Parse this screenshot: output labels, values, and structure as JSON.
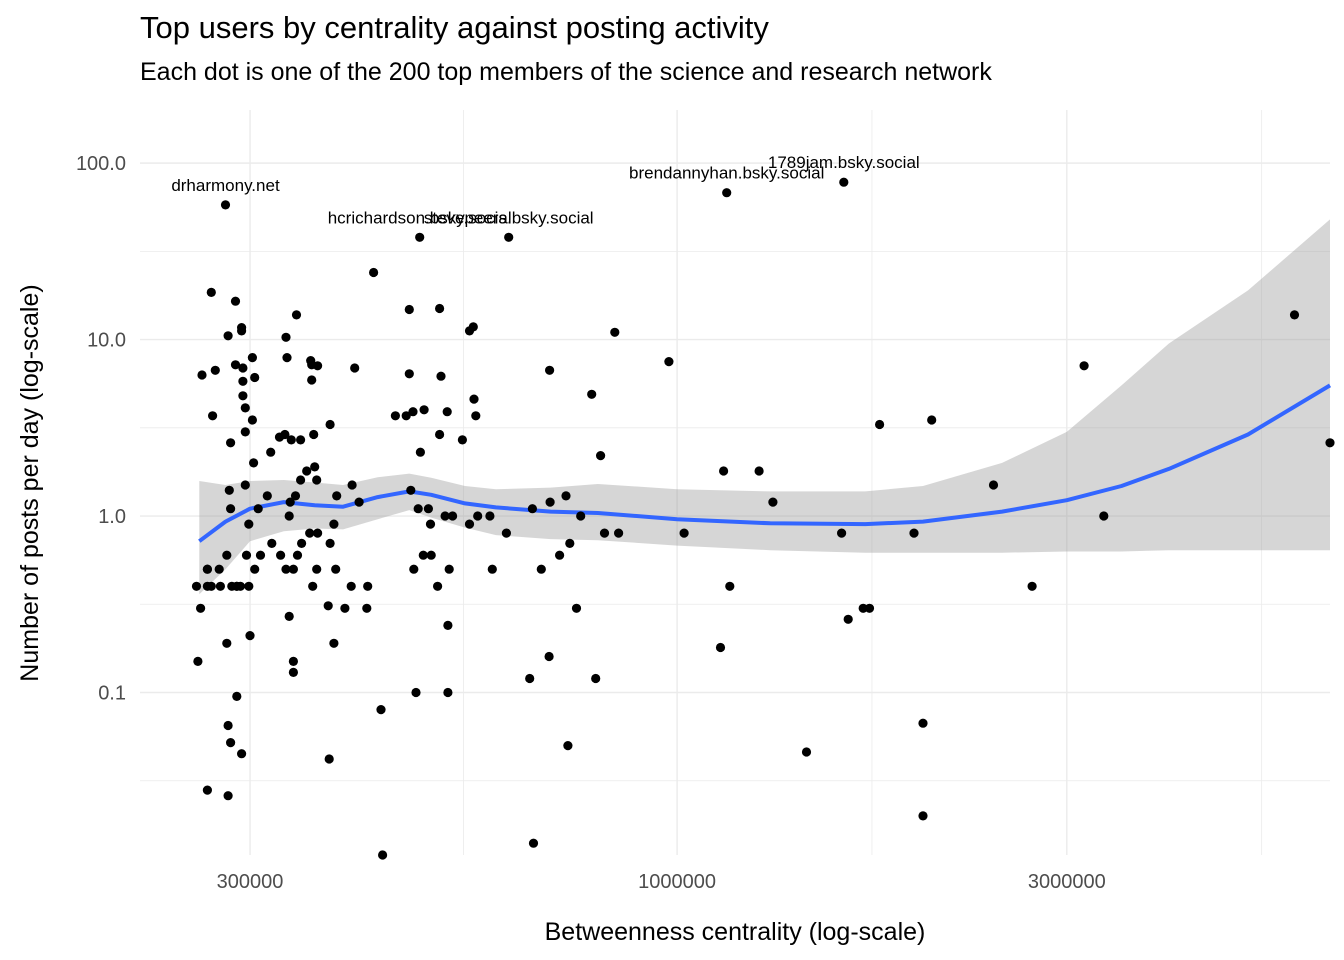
{
  "chart_data": {
    "type": "scatter",
    "title": "Top users by centrality against posting activity",
    "subtitle": "Each dot is one of the 200 top members of the science and research network",
    "xlabel": "Betweenness centrality (log-scale)",
    "ylabel": "Number of posts per day (log-scale)",
    "x_scale": "log10",
    "y_scale": "log10",
    "xlim": [
      220000,
      6300000
    ],
    "ylim": [
      0.012,
      200
    ],
    "x_ticks": [
      300000,
      1000000,
      3000000
    ],
    "x_tick_labels": [
      "300000",
      "1000000",
      "3000000"
    ],
    "y_ticks": [
      0.1,
      1.0,
      10.0,
      100.0
    ],
    "y_tick_labels": [
      "0.1",
      "1.0",
      "10.0",
      "100.0"
    ],
    "grid": true,
    "colors": {
      "points": "#000000",
      "smooth_line": "#3366FF",
      "confidence_band": "#999999",
      "grid": "#ebebeb"
    },
    "labels": [
      {
        "text": "drharmony.net",
        "x": 280000,
        "y": 58
      },
      {
        "text": "hcrichardson.bsky.social",
        "x": 484000,
        "y": 38
      },
      {
        "text": "stevepeers.bsky.social",
        "x": 622000,
        "y": 38
      },
      {
        "text": "brendannyhan.bsky.social",
        "x": 1150000,
        "y": 68
      },
      {
        "text": "1789jam.bsky.social",
        "x": 1600000,
        "y": 78
      }
    ],
    "points": [
      [
        280000,
        58
      ],
      [
        1150000,
        68
      ],
      [
        1600000,
        78
      ],
      [
        484000,
        38
      ],
      [
        622000,
        38
      ],
      [
        425000,
        24
      ],
      [
        269000,
        18.5
      ],
      [
        288000,
        16.5
      ],
      [
        342000,
        13.8
      ],
      [
        512000,
        15
      ],
      [
        470000,
        14.8
      ],
      [
        563000,
        11.8
      ],
      [
        557000,
        11.2
      ],
      [
        282000,
        10.5
      ],
      [
        293000,
        11.7
      ],
      [
        332000,
        10.3
      ],
      [
        293000,
        11.2
      ],
      [
        839000,
        11
      ],
      [
        262000,
        6.3
      ],
      [
        272000,
        6.7
      ],
      [
        288000,
        7.2
      ],
      [
        294000,
        6.9
      ],
      [
        302000,
        7.9
      ],
      [
        333000,
        7.9
      ],
      [
        356000,
        7.6
      ],
      [
        357000,
        7.2
      ],
      [
        363000,
        7.1
      ],
      [
        403000,
        6.9
      ],
      [
        470000,
        6.4
      ],
      [
        514000,
        6.2
      ],
      [
        698000,
        6.7
      ],
      [
        977000,
        7.5
      ],
      [
        3150000,
        7.1
      ],
      [
        5700000,
        13.8
      ],
      [
        270000,
        3.7
      ],
      [
        294000,
        4.8
      ],
      [
        294000,
        5.8
      ],
      [
        296000,
        4.1
      ],
      [
        304000,
        6.1
      ],
      [
        302000,
        3.5
      ],
      [
        296000,
        3.0
      ],
      [
        284000,
        2.6
      ],
      [
        318000,
        2.3
      ],
      [
        303000,
        2.0
      ],
      [
        331000,
        2.9
      ],
      [
        337000,
        2.7
      ],
      [
        326000,
        2.8
      ],
      [
        346000,
        2.7
      ],
      [
        352000,
        1.8
      ],
      [
        360000,
        1.9
      ],
      [
        357000,
        5.9
      ],
      [
        376000,
        3.3
      ],
      [
        452000,
        3.7
      ],
      [
        466000,
        3.7
      ],
      [
        475000,
        3.9
      ],
      [
        490000,
        4.0
      ],
      [
        523000,
        3.9
      ],
      [
        512000,
        2.9
      ],
      [
        546000,
        2.7
      ],
      [
        564000,
        4.6
      ],
      [
        567000,
        3.7
      ],
      [
        786000,
        4.9
      ],
      [
        806000,
        2.2
      ],
      [
        1140000,
        1.8
      ],
      [
        1260000,
        1.8
      ],
      [
        1770000,
        3.3
      ],
      [
        2050000,
        3.5
      ],
      [
        2440000,
        1.5
      ],
      [
        6300000,
        2.6
      ],
      [
        359000,
        2.9
      ],
      [
        346000,
        1.6
      ],
      [
        362000,
        1.6
      ],
      [
        383000,
        1.3
      ],
      [
        400000,
        1.5
      ],
      [
        283000,
        1.4
      ],
      [
        296000,
        1.5
      ],
      [
        315000,
        1.3
      ],
      [
        307000,
        1.1
      ],
      [
        336000,
        1.2
      ],
      [
        335000,
        1.0
      ],
      [
        341000,
        1.3
      ],
      [
        355000,
        0.8
      ],
      [
        363000,
        0.8
      ],
      [
        380000,
        0.9
      ],
      [
        408000,
        1.2
      ],
      [
        472000,
        1.4
      ],
      [
        485000,
        2.3
      ],
      [
        499000,
        0.9
      ],
      [
        482000,
        1.1
      ],
      [
        496000,
        1.1
      ],
      [
        520000,
        1.0
      ],
      [
        531000,
        1.0
      ],
      [
        557000,
        0.9
      ],
      [
        570000,
        1.0
      ],
      [
        590000,
        1.0
      ],
      [
        618000,
        0.8
      ],
      [
        665000,
        1.1
      ],
      [
        699000,
        1.2
      ],
      [
        731000,
        1.3
      ],
      [
        762000,
        1.0
      ],
      [
        815000,
        0.8
      ],
      [
        848000,
        0.8
      ],
      [
        1020000,
        0.8
      ],
      [
        1310000,
        1.2
      ],
      [
        1590000,
        0.8
      ],
      [
        1950000,
        0.8
      ],
      [
        3330000,
        1.0
      ],
      [
        284000,
        1.1
      ],
      [
        299000,
        0.9
      ],
      [
        258000,
        0.4
      ],
      [
        261000,
        0.3
      ],
      [
        266000,
        0.4
      ],
      [
        266000,
        0.5
      ],
      [
        266000,
        0.5
      ],
      [
        269000,
        0.4
      ],
      [
        275000,
        0.5
      ],
      [
        276000,
        0.4
      ],
      [
        281000,
        0.6
      ],
      [
        285000,
        0.4
      ],
      [
        289000,
        0.4
      ],
      [
        289000,
        0.4
      ],
      [
        292000,
        0.4
      ],
      [
        297000,
        0.6
      ],
      [
        299000,
        0.4
      ],
      [
        304000,
        0.5
      ],
      [
        309000,
        0.6
      ],
      [
        319000,
        0.7
      ],
      [
        327000,
        0.6
      ],
      [
        332000,
        0.5
      ],
      [
        339000,
        0.5
      ],
      [
        343000,
        0.6
      ],
      [
        347000,
        0.7
      ],
      [
        358000,
        0.4
      ],
      [
        362000,
        0.5
      ],
      [
        376000,
        0.7
      ],
      [
        382000,
        0.5
      ],
      [
        392000,
        0.3
      ],
      [
        399000,
        0.4
      ],
      [
        417000,
        0.3
      ],
      [
        418000,
        0.4
      ],
      [
        476000,
        0.5
      ],
      [
        489000,
        0.6
      ],
      [
        500000,
        0.6
      ],
      [
        509000,
        0.4
      ],
      [
        526000,
        0.5
      ],
      [
        594000,
        0.5
      ],
      [
        682000,
        0.5
      ],
      [
        718000,
        0.6
      ],
      [
        739000,
        0.7
      ],
      [
        753000,
        0.3
      ],
      [
        1160000,
        0.4
      ],
      [
        1690000,
        0.3
      ],
      [
        1720000,
        0.3
      ],
      [
        2720000,
        0.4
      ],
      [
        259000,
        0.15
      ],
      [
        281000,
        0.19
      ],
      [
        289000,
        0.095
      ],
      [
        300000,
        0.21
      ],
      [
        335000,
        0.27
      ],
      [
        339000,
        0.15
      ],
      [
        339000,
        0.13
      ],
      [
        374000,
        0.31
      ],
      [
        380000,
        0.19
      ],
      [
        434000,
        0.08
      ],
      [
        479000,
        0.1
      ],
      [
        524000,
        0.24
      ],
      [
        524000,
        0.1
      ],
      [
        660000,
        0.12
      ],
      [
        697000,
        0.16
      ],
      [
        795000,
        0.12
      ],
      [
        1130000,
        0.18
      ],
      [
        1620000,
        0.26
      ],
      [
        282000,
        0.065
      ],
      [
        284000,
        0.052
      ],
      [
        293000,
        0.045
      ],
      [
        375000,
        0.042
      ],
      [
        735000,
        0.05
      ],
      [
        1440000,
        0.046
      ],
      [
        2000000,
        0.067
      ],
      [
        266000,
        0.028
      ],
      [
        282000,
        0.026
      ],
      [
        2000000,
        0.02
      ],
      [
        667000,
        0.014
      ],
      [
        436000,
        0.012
      ]
    ],
    "smooth_x": [
      260000,
      280000,
      300000,
      330000,
      360000,
      390000,
      430000,
      470000,
      500000,
      550000,
      600000,
      700000,
      800000,
      1000000,
      1300000,
      1700000,
      2000000,
      2500000,
      3000000,
      3500000,
      4000000,
      5000000,
      6300000
    ],
    "smooth_y": [
      0.72,
      0.93,
      1.1,
      1.2,
      1.15,
      1.13,
      1.28,
      1.38,
      1.32,
      1.18,
      1.12,
      1.06,
      1.04,
      0.96,
      0.91,
      0.9,
      0.93,
      1.06,
      1.23,
      1.48,
      1.85,
      2.9,
      5.5
    ],
    "band_lower": [
      0.36,
      0.5,
      0.72,
      0.82,
      0.85,
      0.84,
      0.96,
      1.08,
      0.98,
      0.86,
      0.78,
      0.74,
      0.73,
      0.68,
      0.64,
      0.62,
      0.62,
      0.62,
      0.63,
      0.63,
      0.64,
      0.64,
      0.64
    ],
    "band_upper": [
      1.58,
      1.5,
      1.58,
      1.6,
      1.55,
      1.5,
      1.66,
      1.74,
      1.65,
      1.48,
      1.42,
      1.45,
      1.52,
      1.42,
      1.38,
      1.38,
      1.48,
      2.0,
      3.0,
      5.5,
      9.5,
      19,
      48
    ]
  }
}
